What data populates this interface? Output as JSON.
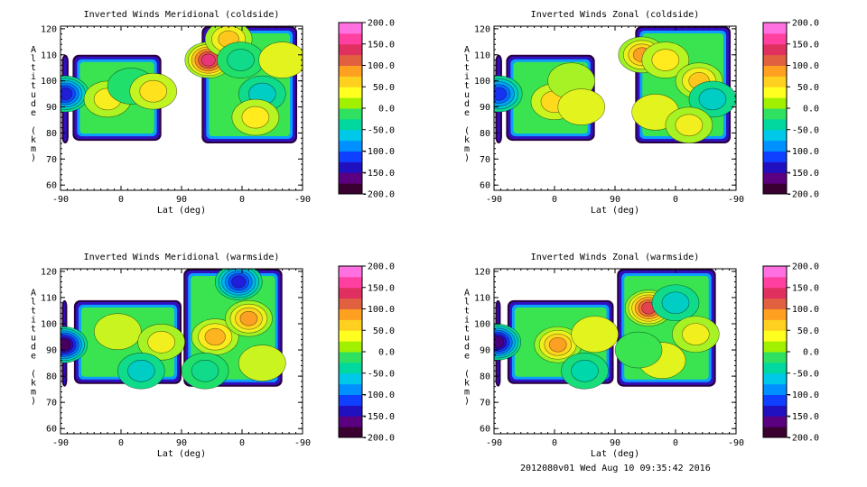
{
  "footer": "2012080v01 Wed Aug 10 09:35:42 2016",
  "colorbar": {
    "ticks": [
      "200.0",
      "150.0",
      "100.0",
      "50.0",
      "0.0",
      "-50.0",
      "-100.0",
      "-150.0",
      "-200.0"
    ],
    "colors": [
      "#3a0030",
      "#5a0080",
      "#2010c0",
      "#1040ff",
      "#0090ff",
      "#00c8e8",
      "#00d8a0",
      "#30e060",
      "#a0f000",
      "#ffff20",
      "#ffd020",
      "#ffa020",
      "#e06040",
      "#e03060",
      "#ff40a0",
      "#ff70e0"
    ]
  },
  "chart_data": [
    {
      "type": "heatmap",
      "title": "Inverted Winds Meridional (coldside)",
      "xlabel": "Lat (deg)",
      "ylabel": "Altitude (km)",
      "xticks": [
        "-90",
        "0",
        "90",
        "0",
        "-90"
      ],
      "yticks": [
        "60",
        "70",
        "80",
        "90",
        "100",
        "110",
        "120"
      ],
      "ylim": [
        58,
        121
      ],
      "zlim": [
        -200,
        200
      ],
      "regions": [
        {
          "x": [
            -88,
            -78
          ],
          "y": [
            76,
            110
          ]
        },
        {
          "x": [
            -72,
            60
          ],
          "y": [
            77,
            110
          ]
        },
        {
          "x": [
            120,
            262
          ],
          "y": [
            76,
            121
          ]
        }
      ],
      "blobs": [
        {
          "x": -83,
          "y": 95,
          "value": -140
        },
        {
          "x": -20,
          "y": 93,
          "value": 45
        },
        {
          "x": 15,
          "y": 98,
          "value": -30
        },
        {
          "x": 48,
          "y": 96,
          "value": 55
        },
        {
          "x": 130,
          "y": 108,
          "value": 160
        },
        {
          "x": 160,
          "y": 116,
          "value": 70
        },
        {
          "x": 178,
          "y": 108,
          "value": -40
        },
        {
          "x": 210,
          "y": 95,
          "value": -60
        },
        {
          "x": 240,
          "y": 108,
          "value": 30
        },
        {
          "x": 200,
          "y": 86,
          "value": 50
        }
      ]
    },
    {
      "type": "heatmap",
      "title": "Inverted Winds Zonal (coldside)",
      "xlabel": "Lat (deg)",
      "ylabel": "Altitude (km)",
      "xticks": [
        "-90",
        "0",
        "90",
        "0",
        "-90"
      ],
      "yticks": [
        "60",
        "70",
        "80",
        "90",
        "100",
        "110",
        "120"
      ],
      "ylim": [
        58,
        121
      ],
      "zlim": [
        -200,
        200
      ],
      "regions": [
        {
          "x": [
            -88,
            -78
          ],
          "y": [
            76,
            110
          ]
        },
        {
          "x": [
            -72,
            60
          ],
          "y": [
            77,
            110
          ]
        },
        {
          "x": [
            120,
            262
          ],
          "y": [
            76,
            121
          ]
        }
      ],
      "blobs": [
        {
          "x": -83,
          "y": 95,
          "value": -130
        },
        {
          "x": 0,
          "y": 92,
          "value": 60
        },
        {
          "x": 25,
          "y": 100,
          "value": 10
        },
        {
          "x": 40,
          "y": 90,
          "value": 30
        },
        {
          "x": 130,
          "y": 110,
          "value": 90
        },
        {
          "x": 165,
          "y": 108,
          "value": 50
        },
        {
          "x": 215,
          "y": 100,
          "value": 70
        },
        {
          "x": 235,
          "y": 93,
          "value": -60
        },
        {
          "x": 150,
          "y": 88,
          "value": 30
        },
        {
          "x": 200,
          "y": 83,
          "value": 40
        }
      ]
    },
    {
      "type": "heatmap",
      "title": "Inverted Winds Meridional (warmside)",
      "xlabel": "Lat (deg)",
      "ylabel": "Altitude (km)",
      "xticks": [
        "-90",
        "0",
        "90",
        "0",
        "-90"
      ],
      "yticks": [
        "60",
        "70",
        "80",
        "90",
        "100",
        "110",
        "120"
      ],
      "ylim": [
        58,
        121
      ],
      "zlim": [
        -200,
        200
      ],
      "regions": [
        {
          "x": [
            -88,
            -80
          ],
          "y": [
            76,
            109
          ]
        },
        {
          "x": [
            -70,
            90
          ],
          "y": [
            77,
            109
          ]
        },
        {
          "x": [
            93,
            240
          ],
          "y": [
            76,
            121
          ]
        }
      ],
      "blobs": [
        {
          "x": -85,
          "y": 92,
          "value": -180
        },
        {
          "x": -5,
          "y": 97,
          "value": 20
        },
        {
          "x": 60,
          "y": 93,
          "value": 40
        },
        {
          "x": 30,
          "y": 82,
          "value": -60
        },
        {
          "x": 140,
          "y": 95,
          "value": 80
        },
        {
          "x": 190,
          "y": 102,
          "value": 90
        },
        {
          "x": 175,
          "y": 116,
          "value": -140
        },
        {
          "x": 210,
          "y": 85,
          "value": 20
        },
        {
          "x": 125,
          "y": 82,
          "value": -40
        }
      ]
    },
    {
      "type": "heatmap",
      "title": "Inverted Winds Zonal (warmside)",
      "xlabel": "Lat (deg)",
      "ylabel": "Altitude (km)",
      "xticks": [
        "-90",
        "0",
        "90",
        "0",
        "-90"
      ],
      "yticks": [
        "60",
        "70",
        "80",
        "90",
        "100",
        "110",
        "120"
      ],
      "ylim": [
        58,
        121
      ],
      "zlim": [
        -200,
        200
      ],
      "regions": [
        {
          "x": [
            -88,
            -80
          ],
          "y": [
            76,
            109
          ]
        },
        {
          "x": [
            -70,
            88
          ],
          "y": [
            77,
            109
          ]
        },
        {
          "x": [
            93,
            240
          ],
          "y": [
            76,
            121
          ]
        }
      ],
      "blobs": [
        {
          "x": -85,
          "y": 93,
          "value": -170
        },
        {
          "x": 5,
          "y": 92,
          "value": 90
        },
        {
          "x": 60,
          "y": 96,
          "value": 30
        },
        {
          "x": 45,
          "y": 82,
          "value": -50
        },
        {
          "x": 140,
          "y": 106,
          "value": 140
        },
        {
          "x": 180,
          "y": 108,
          "value": -60
        },
        {
          "x": 210,
          "y": 96,
          "value": 40
        },
        {
          "x": 160,
          "y": 86,
          "value": 30
        },
        {
          "x": 125,
          "y": 90,
          "value": -20
        }
      ]
    }
  ]
}
